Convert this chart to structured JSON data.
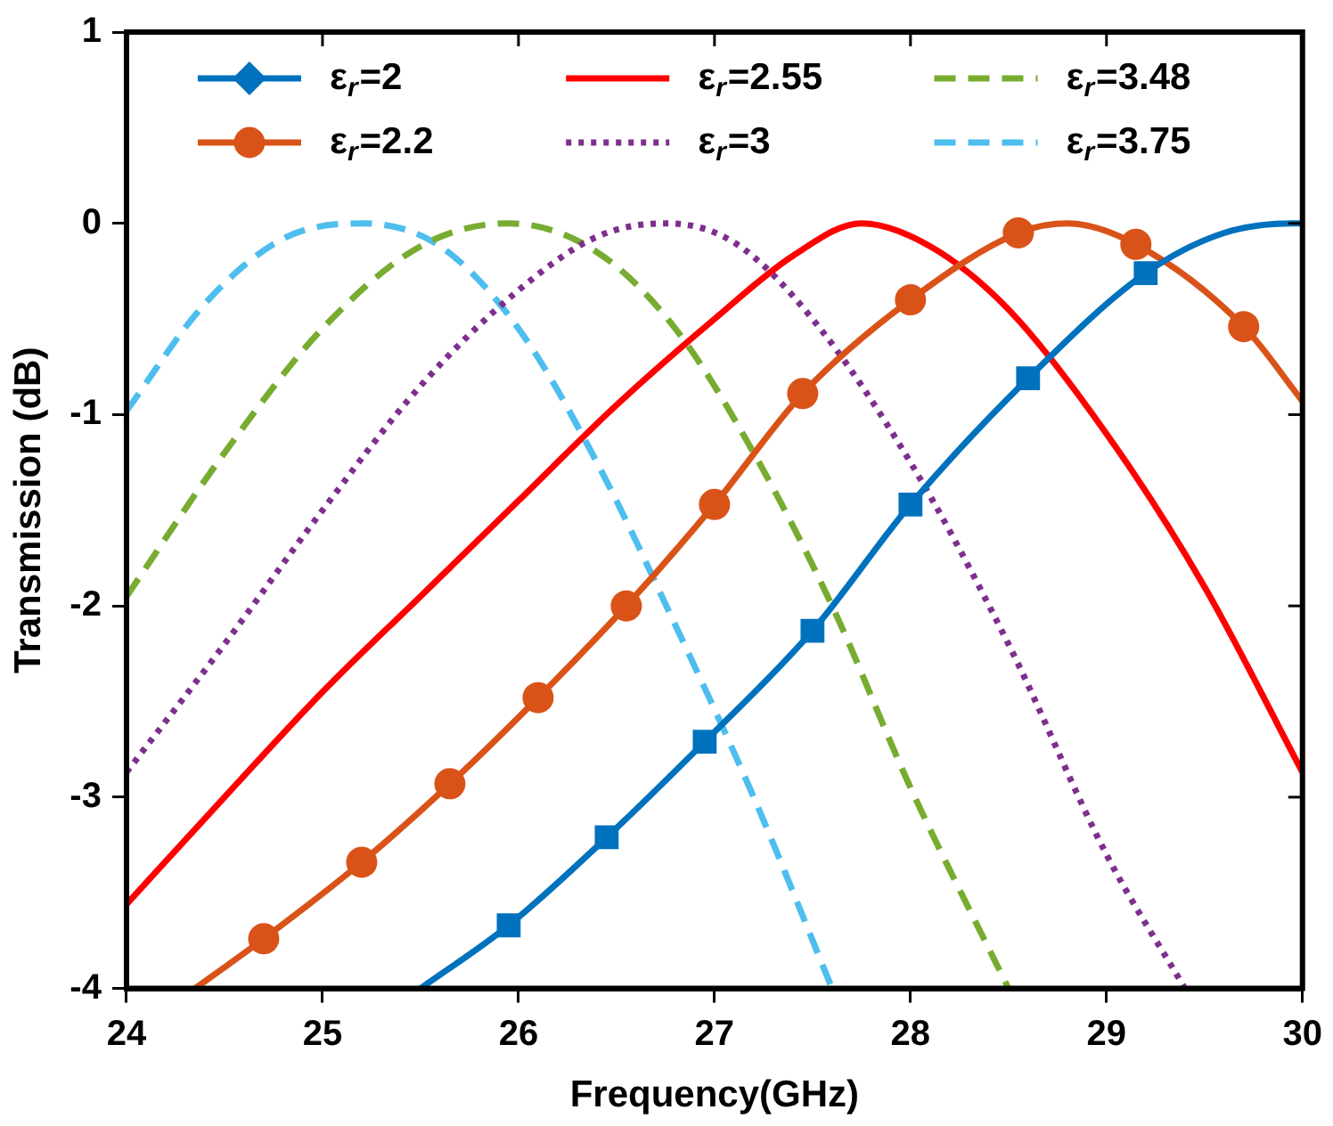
{
  "chart_data": {
    "type": "line",
    "xlabel": "Frequency(GHz)",
    "ylabel": "Transmission (dB)",
    "xlim": [
      24,
      30
    ],
    "xticks": [
      24,
      25,
      26,
      27,
      28,
      29,
      30
    ],
    "ylim": [
      -4,
      1
    ],
    "yticks": [
      -4,
      -3,
      -2,
      -1,
      0,
      1
    ],
    "grid": false,
    "legend": "top",
    "series": [
      {
        "color": "#0072bd",
        "marker": "none",
        "line_style": "solid",
        "x": [
          25.5,
          25.95,
          26.45,
          26.95,
          27.5,
          28.0,
          28.6,
          29.2,
          29.6,
          29.95,
          30
        ],
        "values": [
          -4,
          -3.67,
          -3.21,
          -2.71,
          -2.13,
          -1.47,
          -0.81,
          -0.26,
          -0.05,
          0,
          0
        ]
      },
      {
        "type": "scatter",
        "name": "ε$_{r}$=2",
        "color": "#0072bd",
        "marker": "square",
        "x": [
          25.95,
          26.45,
          26.95,
          27.5,
          28.0,
          28.6,
          29.2
        ],
        "values": [
          -3.67,
          -3.21,
          -2.71,
          -2.13,
          -1.47,
          -0.81,
          -0.26
        ]
      },
      {
        "color": "#d95319",
        "marker": "none",
        "line_style": "solid",
        "x": [
          24.35,
          24.7,
          25.2,
          25.65,
          26.1,
          26.55,
          27.0,
          27.45,
          28.0,
          28.55,
          28.8,
          29.15,
          29.7,
          30
        ],
        "values": [
          -4,
          -3.74,
          -3.34,
          -2.93,
          -2.48,
          -2.0,
          -1.47,
          -0.89,
          -0.4,
          -0.05,
          0,
          -0.11,
          -0.54,
          -0.93
        ]
      },
      {
        "type": "scatter",
        "name": "ε$_{r}$=2.2",
        "color": "#d95319",
        "marker": "circle",
        "x": [
          24.7,
          25.2,
          25.65,
          26.1,
          26.55,
          27.0,
          27.45,
          28.0,
          28.55,
          29.15,
          29.7
        ],
        "values": [
          -3.74,
          -3.34,
          -2.93,
          -2.48,
          -2.0,
          -1.47,
          -0.89,
          -0.4,
          -0.05,
          -0.11,
          -0.54
        ]
      },
      {
        "name": "ε$_{r}$=2.55",
        "color": "#ff0000",
        "marker": "none",
        "line_style": "solid",
        "x": [
          24,
          24.5,
          25,
          25.5,
          26,
          26.5,
          27,
          27.4,
          27.75,
          28.1,
          28.5,
          29,
          29.5,
          30
        ],
        "values": [
          -3.56,
          -3.0,
          -2.45,
          -1.95,
          -1.45,
          -0.95,
          -0.5,
          -0.17,
          0,
          -0.12,
          -0.45,
          -1.1,
          -1.9,
          -2.87
        ]
      },
      {
        "name": "ε$_{r}$=3",
        "color": "#7e2f8e",
        "marker": "none",
        "line_style": "dotted",
        "x": [
          24,
          24.5,
          25,
          25.5,
          26,
          26.4,
          26.75,
          27.1,
          27.5,
          28,
          28.5,
          29,
          29.4
        ],
        "values": [
          -2.87,
          -2.2,
          -1.5,
          -0.85,
          -0.35,
          -0.07,
          0,
          -0.1,
          -0.5,
          -1.25,
          -2.2,
          -3.3,
          -4
        ]
      },
      {
        "name": "ε$_{r}$=3.48",
        "color": "#77ac30",
        "marker": "none",
        "line_style": "dashed",
        "x": [
          24,
          24.5,
          25,
          25.5,
          25.95,
          26.4,
          26.8,
          27.2,
          27.6,
          28,
          28.5
        ],
        "values": [
          -1.95,
          -1.2,
          -0.55,
          -0.12,
          0,
          -0.15,
          -0.55,
          -1.2,
          -2.0,
          -2.95,
          -4
        ]
      },
      {
        "name": "ε$_{r}$=3.75",
        "color": "#4dbeee",
        "marker": "none",
        "line_style": "dashed",
        "x": [
          24,
          24.4,
          24.8,
          25.2,
          25.6,
          26,
          26.4,
          26.8,
          27.2,
          27.6
        ],
        "values": [
          -0.98,
          -0.42,
          -0.08,
          0,
          -0.12,
          -0.55,
          -1.25,
          -2.1,
          -3.0,
          -4
        ]
      }
    ]
  }
}
